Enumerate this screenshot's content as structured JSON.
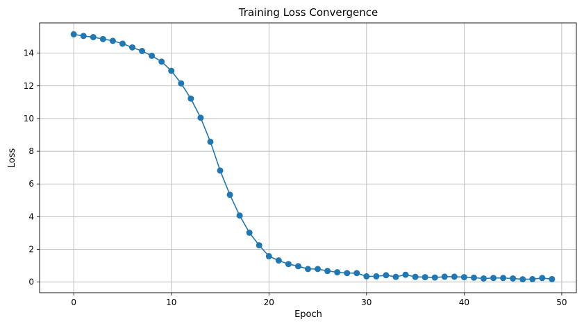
{
  "chart_data": {
    "type": "line",
    "title": "Training Loss Convergence",
    "xlabel": "Epoch",
    "ylabel": "Loss",
    "xlim": [
      -3.5,
      51.5
    ],
    "ylim": [
      -0.65,
      15.85
    ],
    "xticks": [
      0,
      10,
      20,
      30,
      40,
      50
    ],
    "yticks": [
      0,
      2,
      4,
      6,
      8,
      10,
      12,
      14
    ],
    "grid": true,
    "legend": "none",
    "series": [
      {
        "color": "#1f77b4",
        "marker": "circle",
        "x": [
          0,
          1,
          2,
          3,
          4,
          5,
          6,
          7,
          8,
          9,
          10,
          11,
          12,
          13,
          14,
          15,
          16,
          17,
          18,
          19,
          20,
          21,
          22,
          23,
          24,
          25,
          26,
          27,
          28,
          29,
          30,
          31,
          32,
          33,
          34,
          35,
          36,
          37,
          38,
          39,
          40,
          41,
          42,
          43,
          44,
          45,
          46,
          47,
          48,
          49
        ],
        "values": [
          15.15,
          15.05,
          14.98,
          14.86,
          14.75,
          14.58,
          14.35,
          14.13,
          13.84,
          13.48,
          12.92,
          12.15,
          11.22,
          10.05,
          8.58,
          6.82,
          5.34,
          4.07,
          3.02,
          2.25,
          1.58,
          1.32,
          1.1,
          0.97,
          0.8,
          0.8,
          0.68,
          0.6,
          0.55,
          0.55,
          0.35,
          0.35,
          0.42,
          0.32,
          0.45,
          0.32,
          0.3,
          0.28,
          0.33,
          0.33,
          0.3,
          0.27,
          0.22,
          0.25,
          0.25,
          0.22,
          0.17,
          0.18,
          0.25,
          0.18
        ]
      }
    ]
  }
}
